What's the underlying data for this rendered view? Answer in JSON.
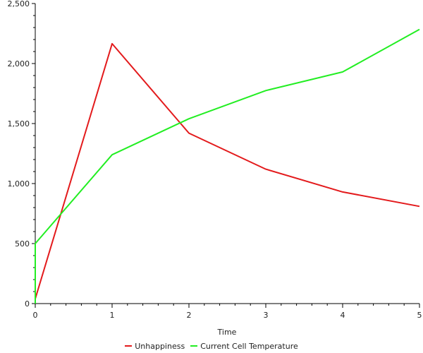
{
  "chart_data": {
    "type": "line",
    "xlabel": "Time",
    "ylabel": "",
    "xlim": [
      0,
      5
    ],
    "ylim": [
      0,
      2500
    ],
    "x_ticks": [
      "0",
      "1",
      "2",
      "3",
      "4",
      "5"
    ],
    "y_ticks": [
      "0",
      "500",
      "1,000",
      "1,500",
      "2,000",
      "2,500"
    ],
    "grid": false,
    "legend_position": "bottom",
    "series": [
      {
        "name": "Unhappiness",
        "color": "#e31a1c",
        "x": [
          0,
          1,
          2,
          3,
          4,
          5
        ],
        "y": [
          40,
          2165,
          1420,
          1120,
          930,
          810
        ]
      },
      {
        "name": "Current Cell Temperature",
        "color": "#22ee22",
        "x": [
          0,
          0,
          1,
          2,
          3,
          4,
          5
        ],
        "y": [
          0,
          500,
          1240,
          1540,
          1775,
          1930,
          2285
        ]
      }
    ]
  }
}
